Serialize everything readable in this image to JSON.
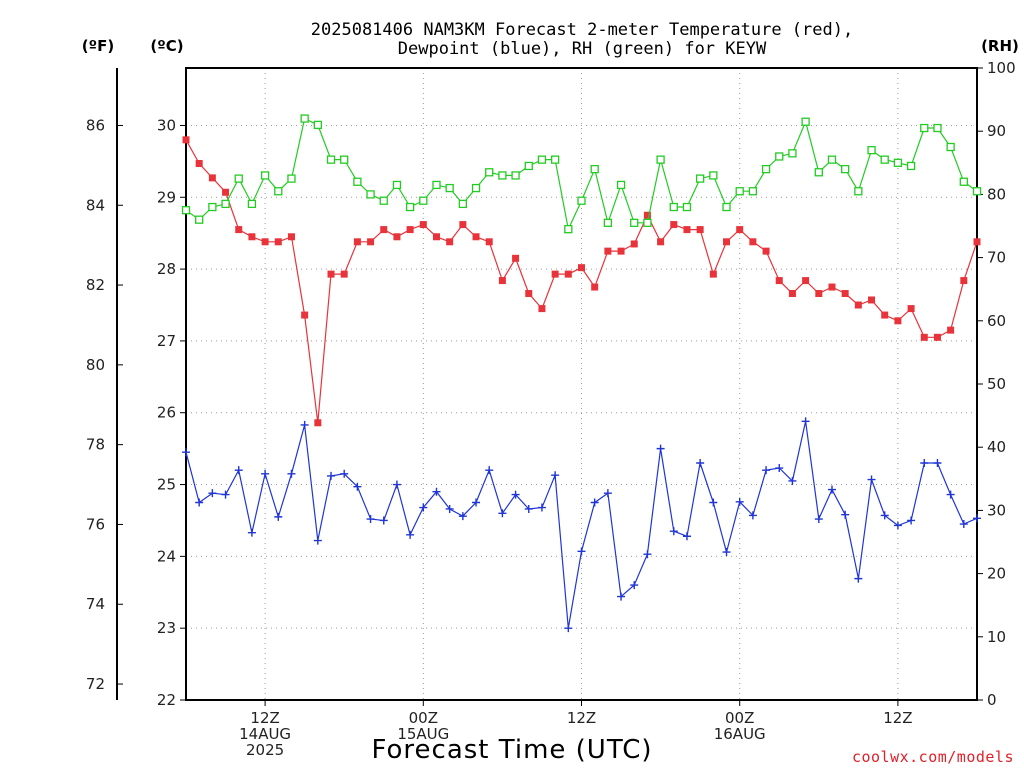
{
  "chart_data": {
    "type": "line",
    "title_lines": [
      "2025081406 NAM3KM Forecast 2-meter Temperature (red),",
      "Dewpoint (blue), RH (green) for KEYW"
    ],
    "xlabel": "Forecast Time (UTC)",
    "credit": "coolwx.com/models",
    "units": {
      "fahrenheit": "(ºF)",
      "celsius": "(ºC)",
      "rh": "(RH)"
    },
    "x_hours_range": [
      0,
      60
    ],
    "x_ticks": [
      {
        "hour": 6,
        "lines": [
          "12Z",
          "14AUG",
          "2025"
        ]
      },
      {
        "hour": 18,
        "lines": [
          "00Z",
          "15AUG"
        ]
      },
      {
        "hour": 30,
        "lines": [
          "12Z"
        ]
      },
      {
        "hour": 42,
        "lines": [
          "00Z",
          "16AUG"
        ]
      },
      {
        "hour": 54,
        "lines": [
          "12Z"
        ]
      }
    ],
    "celsius_axis": {
      "min": 22,
      "max": 30.8,
      "ticks": [
        22,
        23,
        24,
        25,
        26,
        27,
        28,
        29,
        30
      ]
    },
    "fahrenheit_axis": {
      "min": 71.6,
      "max": 87.44,
      "ticks": [
        72,
        74,
        76,
        78,
        80,
        82,
        84,
        86
      ]
    },
    "rh_axis": {
      "min": 0,
      "max": 100,
      "ticks": [
        0,
        10,
        20,
        30,
        40,
        50,
        60,
        70,
        80,
        90,
        100
      ]
    },
    "grid": true,
    "series": [
      {
        "key": "temperature",
        "axis": "celsius",
        "color": "#e8333a",
        "marker": "filled-square",
        "x": [
          0,
          1,
          2,
          3,
          4,
          5,
          6,
          7,
          8,
          9,
          10,
          11,
          12,
          13,
          14,
          15,
          16,
          17,
          18,
          19,
          20,
          21,
          22,
          23,
          24,
          25,
          26,
          27,
          28,
          29,
          30,
          31,
          32,
          33,
          34,
          35,
          36,
          37,
          38,
          39,
          40,
          41,
          42,
          43,
          44,
          45,
          46,
          47,
          48,
          49,
          50,
          51,
          52,
          53,
          54,
          55,
          56,
          57,
          58,
          59,
          60
        ],
        "values": [
          29.8,
          29.47,
          29.27,
          29.07,
          28.55,
          28.45,
          28.38,
          28.38,
          28.45,
          27.36,
          25.86,
          27.93,
          27.93,
          28.38,
          28.38,
          28.55,
          28.45,
          28.55,
          28.62,
          28.45,
          28.38,
          28.62,
          28.45,
          28.38,
          27.84,
          28.15,
          27.66,
          27.45,
          27.93,
          27.93,
          28.02,
          27.75,
          28.25,
          28.25,
          28.35,
          28.75,
          28.38,
          28.62,
          28.55,
          28.55,
          27.93,
          28.38,
          28.55,
          28.38,
          28.25,
          27.84,
          27.66,
          27.84,
          27.66,
          27.75,
          27.66,
          27.5,
          27.57,
          27.36,
          27.28,
          27.45,
          27.05,
          27.05,
          27.15,
          27.84,
          28.38
        ]
      },
      {
        "key": "dewpoint",
        "axis": "celsius",
        "color": "#1f35d6",
        "marker": "plus",
        "x": [
          0,
          1,
          2,
          3,
          4,
          5,
          6,
          7,
          8,
          9,
          10,
          11,
          12,
          13,
          14,
          15,
          16,
          17,
          18,
          19,
          20,
          21,
          22,
          23,
          24,
          25,
          26,
          27,
          28,
          29,
          30,
          31,
          32,
          33,
          34,
          35,
          36,
          37,
          38,
          39,
          40,
          41,
          42,
          43,
          44,
          45,
          46,
          47,
          48,
          49,
          50,
          51,
          52,
          53,
          54,
          55,
          56,
          57,
          58,
          59,
          60
        ],
        "values": [
          25.45,
          24.75,
          24.88,
          24.86,
          25.2,
          24.33,
          25.15,
          24.55,
          25.15,
          25.83,
          24.22,
          25.12,
          25.15,
          24.97,
          24.52,
          24.5,
          25,
          24.3,
          24.68,
          24.9,
          24.66,
          24.56,
          24.75,
          25.2,
          24.6,
          24.86,
          24.66,
          24.68,
          25.13,
          23,
          24.07,
          24.75,
          24.88,
          23.44,
          23.6,
          24.03,
          25.5,
          24.35,
          24.28,
          25.3,
          24.75,
          24.06,
          24.76,
          24.57,
          25.2,
          25.23,
          25.05,
          25.88,
          24.52,
          24.93,
          24.58,
          23.69,
          25.07,
          24.57,
          24.43,
          24.5,
          25.3,
          25.3,
          24.86,
          24.45,
          24.53
        ]
      },
      {
        "key": "rh",
        "axis": "rh",
        "color": "#22cc22",
        "marker": "hollow-square",
        "x": [
          0,
          1,
          2,
          3,
          4,
          5,
          6,
          7,
          8,
          9,
          10,
          11,
          12,
          13,
          14,
          15,
          16,
          17,
          18,
          19,
          20,
          21,
          22,
          23,
          24,
          25,
          26,
          27,
          28,
          29,
          30,
          31,
          32,
          33,
          34,
          35,
          36,
          37,
          38,
          39,
          40,
          41,
          42,
          43,
          44,
          45,
          46,
          47,
          48,
          49,
          50,
          51,
          52,
          53,
          54,
          55,
          56,
          57,
          58,
          59,
          60
        ],
        "values": [
          77.5,
          76,
          78,
          78.5,
          82.5,
          78.5,
          83,
          80.5,
          82.5,
          92,
          91,
          85.5,
          85.5,
          82,
          80,
          79,
          81.5,
          78,
          79,
          81.5,
          81,
          78.5,
          81,
          83.5,
          83,
          83,
          84.5,
          85.5,
          85.5,
          74.5,
          79,
          84,
          75.5,
          81.5,
          75.5,
          75.5,
          85.5,
          78,
          78,
          82.5,
          83,
          78,
          80.5,
          80.5,
          84,
          86,
          86.5,
          91.5,
          83.5,
          85.5,
          84,
          80.5,
          87,
          85.5,
          85,
          84.5,
          90.5,
          90.5,
          87.5,
          82,
          80.5
        ]
      }
    ]
  }
}
